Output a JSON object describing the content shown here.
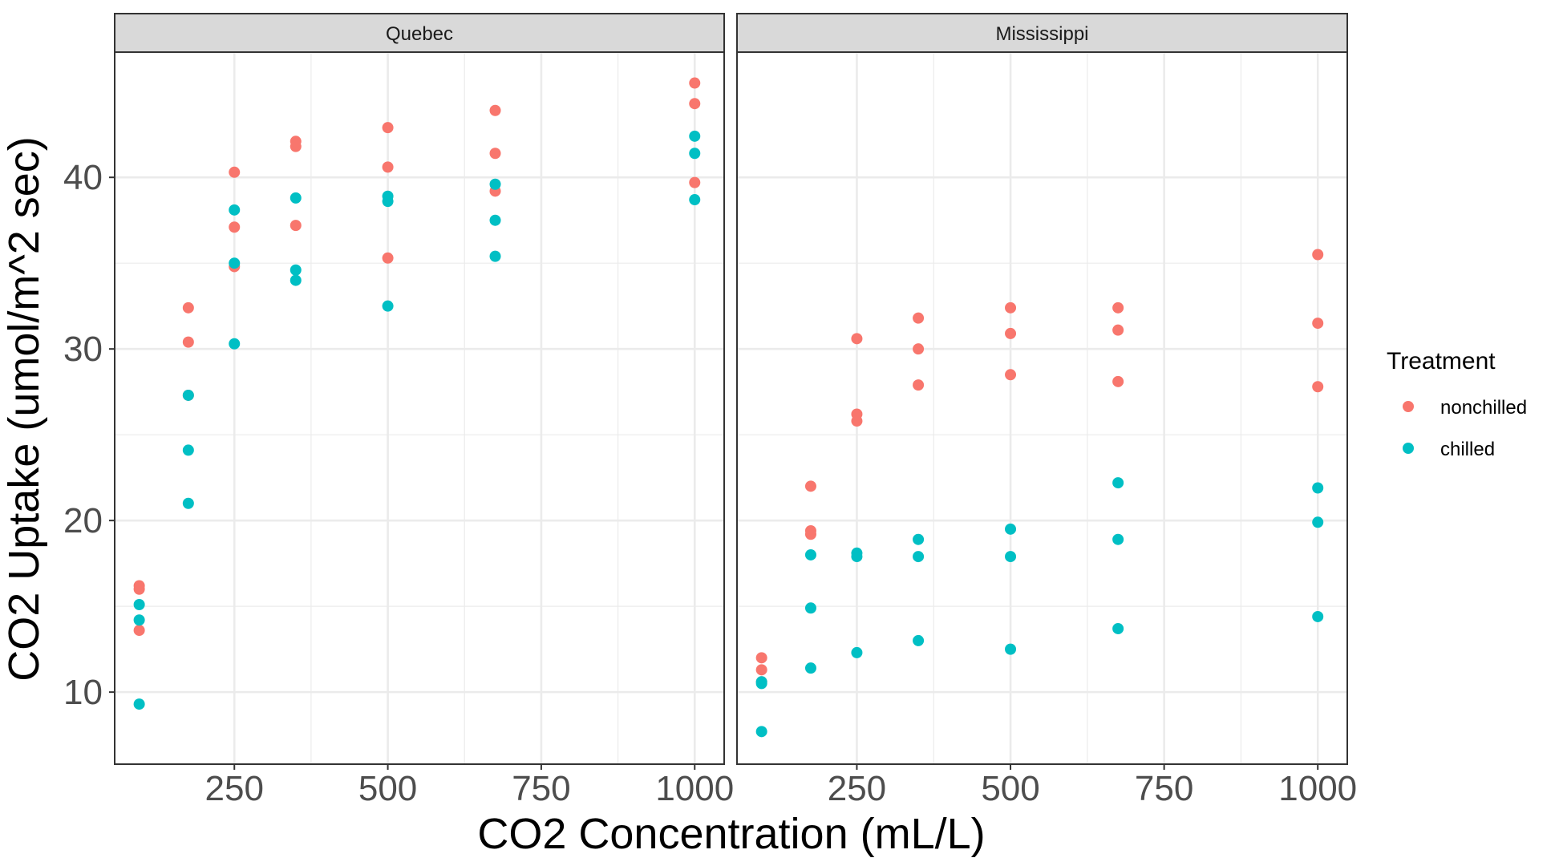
{
  "chart_data": {
    "type": "scatter",
    "xlabel": "CO2 Concentration (mL/L)",
    "ylabel": "CO2 Uptake (umol/m^2 sec)",
    "xlim": [
      55,
      1048
    ],
    "ylim": [
      5.8,
      47.3
    ],
    "x_ticks": [
      250,
      500,
      750,
      1000
    ],
    "y_ticks": [
      10,
      20,
      30,
      40
    ],
    "grid": true,
    "legend": {
      "title": "Treatment",
      "position": "right",
      "entries": [
        "nonchilled",
        "chilled"
      ]
    },
    "colors": {
      "nonchilled": "#F8766D",
      "chilled": "#00BFC4"
    },
    "panels": [
      {
        "name": "Quebec",
        "series": [
          {
            "name": "nonchilled",
            "points": [
              [
                95,
                16.0
              ],
              [
                175,
                30.4
              ],
              [
                250,
                34.8
              ],
              [
                350,
                37.2
              ],
              [
                500,
                35.3
              ],
              [
                675,
                39.2
              ],
              [
                1000,
                39.7
              ],
              [
                95,
                13.6
              ],
              [
                175,
                27.3
              ],
              [
                250,
                37.1
              ],
              [
                350,
                41.8
              ],
              [
                500,
                40.6
              ],
              [
                675,
                41.4
              ],
              [
                1000,
                44.3
              ],
              [
                95,
                16.2
              ],
              [
                175,
                32.4
              ],
              [
                250,
                40.3
              ],
              [
                350,
                42.1
              ],
              [
                500,
                42.9
              ],
              [
                675,
                43.9
              ],
              [
                1000,
                45.5
              ]
            ]
          },
          {
            "name": "chilled",
            "points": [
              [
                95,
                14.2
              ],
              [
                175,
                24.1
              ],
              [
                250,
                30.3
              ],
              [
                350,
                34.6
              ],
              [
                500,
                32.5
              ],
              [
                675,
                35.4
              ],
              [
                1000,
                38.7
              ],
              [
                95,
                9.3
              ],
              [
                175,
                27.3
              ],
              [
                250,
                35.0
              ],
              [
                350,
                38.8
              ],
              [
                500,
                38.6
              ],
              [
                675,
                37.5
              ],
              [
                1000,
                42.4
              ],
              [
                95,
                15.1
              ],
              [
                175,
                21.0
              ],
              [
                250,
                38.1
              ],
              [
                350,
                34.0
              ],
              [
                500,
                38.9
              ],
              [
                675,
                39.6
              ],
              [
                1000,
                41.4
              ]
            ]
          }
        ]
      },
      {
        "name": "Mississippi",
        "series": [
          {
            "name": "nonchilled",
            "points": [
              [
                95,
                10.6
              ],
              [
                175,
                19.2
              ],
              [
                250,
                26.2
              ],
              [
                350,
                30.0
              ],
              [
                500,
                30.9
              ],
              [
                675,
                32.4
              ],
              [
                1000,
                35.5
              ],
              [
                95,
                12.0
              ],
              [
                175,
                22.0
              ],
              [
                250,
                30.6
              ],
              [
                350,
                31.8
              ],
              [
                500,
                32.4
              ],
              [
                675,
                31.1
              ],
              [
                1000,
                31.5
              ],
              [
                95,
                11.3
              ],
              [
                175,
                19.4
              ],
              [
                250,
                25.8
              ],
              [
                350,
                27.9
              ],
              [
                500,
                28.5
              ],
              [
                675,
                28.1
              ],
              [
                1000,
                27.8
              ]
            ]
          },
          {
            "name": "chilled",
            "points": [
              [
                95,
                10.5
              ],
              [
                175,
                14.9
              ],
              [
                250,
                18.1
              ],
              [
                350,
                18.9
              ],
              [
                500,
                19.5
              ],
              [
                675,
                22.2
              ],
              [
                1000,
                21.9
              ],
              [
                95,
                7.7
              ],
              [
                175,
                11.4
              ],
              [
                250,
                12.3
              ],
              [
                350,
                13.0
              ],
              [
                500,
                12.5
              ],
              [
                675,
                13.7
              ],
              [
                1000,
                14.4
              ],
              [
                95,
                10.6
              ],
              [
                175,
                18.0
              ],
              [
                250,
                17.9
              ],
              [
                350,
                17.9
              ],
              [
                500,
                17.9
              ],
              [
                675,
                18.9
              ],
              [
                1000,
                19.9
              ]
            ]
          }
        ]
      }
    ]
  }
}
